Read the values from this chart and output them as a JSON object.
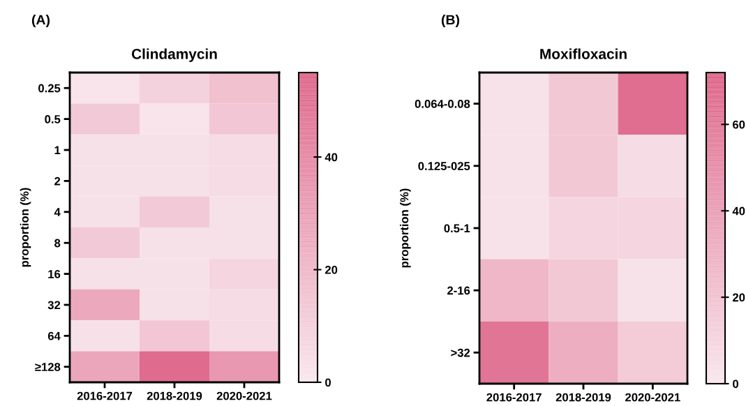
{
  "chart_data": [
    {
      "type": "heatmap",
      "title": "Clindamycin",
      "ylabel": "proportion (%)",
      "annotations": [
        "(A)"
      ],
      "categories": [
        "2016-2017",
        "2018-2019",
        "2020-2021"
      ],
      "y_categories": [
        "0.25",
        "0.5",
        "1",
        "2",
        "4",
        "8",
        "16",
        "32",
        "64",
        "≥128"
      ],
      "cells": [
        [
          1,
          8,
          15
        ],
        [
          12,
          1,
          13
        ],
        [
          2,
          2,
          4
        ],
        [
          2,
          2,
          4
        ],
        [
          2,
          12,
          2
        ],
        [
          12,
          2,
          2
        ],
        [
          2,
          2,
          7
        ],
        [
          25,
          2,
          4
        ],
        [
          2,
          13,
          4
        ],
        [
          26,
          50,
          32
        ]
      ],
      "clim": [
        0,
        55
      ],
      "cticks": [
        0,
        20,
        40
      ],
      "colors": [
        "#f8e6ec",
        "#dd5f85"
      ]
    },
    {
      "type": "heatmap",
      "title": "Moxifloxacin",
      "ylabel": "proportion (%)",
      "annotations": [
        "(B)"
      ],
      "categories": [
        "2016-2017",
        "2018-2019",
        "2020-2021"
      ],
      "y_categories": [
        "0.064-0.08",
        "0.125-025",
        "0.5-1",
        "2-16",
        ">32"
      ],
      "cells": [
        [
          2,
          16,
          64
        ],
        [
          2,
          16,
          5
        ],
        [
          2,
          9,
          9
        ],
        [
          25,
          16,
          2
        ],
        [
          60,
          30,
          14
        ]
      ],
      "clim": [
        0,
        72
      ],
      "cticks": [
        0,
        20,
        40,
        60
      ],
      "colors": [
        "#f8e6ec",
        "#dd5f85"
      ]
    }
  ]
}
